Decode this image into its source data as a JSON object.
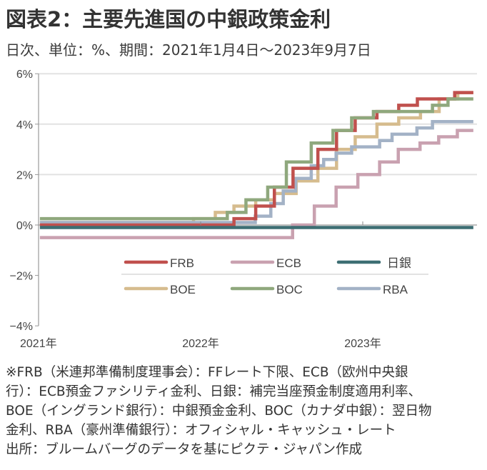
{
  "header": {
    "title": "図表2：主要先進国の中銀政策金利",
    "subtitle": "日次、単位：%、期間：2021年1月4日～2023年9月7日"
  },
  "chart_data": {
    "type": "line",
    "step": true,
    "title": "図表2：主要先進国の中銀政策金利",
    "xlabel": "",
    "ylabel": "%",
    "xlim": [
      "2021-01-04",
      "2023-09-07"
    ],
    "ylim": [
      -4,
      6
    ],
    "yticks": [
      6,
      4,
      2,
      0,
      -2,
      -4
    ],
    "ytick_labels": [
      "6%",
      "4%",
      "2%",
      "0%",
      "−2%",
      "−4%"
    ],
    "xticks": [
      {
        "date": "2021-01-01",
        "label": "2021年"
      },
      {
        "date": "2022-01-01",
        "label": "2022年"
      },
      {
        "date": "2023-01-01",
        "label": "2023年"
      }
    ],
    "grid": true,
    "legend_position": "bottom-center",
    "series": [
      {
        "name": "FRB",
        "color": "#c0504d",
        "steps": [
          [
            "2021-01-04",
            0
          ],
          [
            "2022-03-17",
            0.25
          ],
          [
            "2022-05-05",
            0.75
          ],
          [
            "2022-06-16",
            1.5
          ],
          [
            "2022-07-28",
            2.25
          ],
          [
            "2022-09-22",
            3.0
          ],
          [
            "2022-11-03",
            3.75
          ],
          [
            "2022-12-15",
            4.25
          ],
          [
            "2023-02-02",
            4.5
          ],
          [
            "2023-03-23",
            4.75
          ],
          [
            "2023-05-04",
            5.0
          ],
          [
            "2023-07-27",
            5.25
          ]
        ]
      },
      {
        "name": "ECB",
        "color": "#c9a1b0",
        "steps": [
          [
            "2021-01-04",
            -0.5
          ],
          [
            "2022-07-27",
            0
          ],
          [
            "2022-09-14",
            0.75
          ],
          [
            "2022-11-02",
            1.5
          ],
          [
            "2022-12-21",
            2.0
          ],
          [
            "2023-02-08",
            2.5
          ],
          [
            "2023-03-22",
            3.0
          ],
          [
            "2023-05-10",
            3.25
          ],
          [
            "2023-06-21",
            3.5
          ],
          [
            "2023-08-02",
            3.75
          ]
        ]
      },
      {
        "name": "日銀",
        "color": "#3d6e73",
        "steps": [
          [
            "2021-01-04",
            -0.1
          ]
        ]
      },
      {
        "name": "BOE",
        "color": "#d6bc8e",
        "steps": [
          [
            "2021-01-04",
            0.1
          ],
          [
            "2021-12-16",
            0.25
          ],
          [
            "2022-02-03",
            0.5
          ],
          [
            "2022-03-17",
            0.75
          ],
          [
            "2022-05-05",
            1.0
          ],
          [
            "2022-06-16",
            1.25
          ],
          [
            "2022-08-04",
            1.75
          ],
          [
            "2022-09-22",
            2.25
          ],
          [
            "2022-11-03",
            3.0
          ],
          [
            "2022-12-15",
            3.5
          ],
          [
            "2023-02-02",
            4.0
          ],
          [
            "2023-03-23",
            4.25
          ],
          [
            "2023-05-11",
            4.5
          ],
          [
            "2023-06-22",
            5.0
          ],
          [
            "2023-08-03",
            5.25
          ]
        ]
      },
      {
        "name": "BOC",
        "color": "#8fa87d",
        "steps": [
          [
            "2021-01-04",
            0.25
          ],
          [
            "2022-03-02",
            0.5
          ],
          [
            "2022-04-13",
            1.0
          ],
          [
            "2022-06-01",
            1.5
          ],
          [
            "2022-07-13",
            2.5
          ],
          [
            "2022-09-07",
            3.25
          ],
          [
            "2022-10-26",
            3.75
          ],
          [
            "2022-12-07",
            4.25
          ],
          [
            "2023-01-25",
            4.5
          ],
          [
            "2023-06-07",
            4.75
          ],
          [
            "2023-07-12",
            5.0
          ]
        ]
      },
      {
        "name": "RBA",
        "color": "#a3b2c6",
        "steps": [
          [
            "2021-01-04",
            0.1
          ],
          [
            "2022-05-04",
            0.35
          ],
          [
            "2022-06-08",
            0.85
          ],
          [
            "2022-07-06",
            1.35
          ],
          [
            "2022-08-03",
            1.85
          ],
          [
            "2022-09-07",
            2.35
          ],
          [
            "2022-10-05",
            2.6
          ],
          [
            "2022-11-02",
            2.85
          ],
          [
            "2022-12-07",
            3.1
          ],
          [
            "2023-02-08",
            3.35
          ],
          [
            "2023-03-08",
            3.6
          ],
          [
            "2023-05-03",
            3.85
          ],
          [
            "2023-06-07",
            4.1
          ]
        ]
      }
    ]
  },
  "notes": [
    "※FRB（米連邦準備制度理事会）：FFレート下限、ECB（欧州中央銀",
    "行）：ECB預金ファシリティ金利、日銀：補完当座預金制度適用利率、",
    "BOE（イングランド銀行）：中銀預金金利、BOC（カナダ中銀）：翌日物",
    "金利、RBA（豪州準備銀行）：オフィシャル・キャッシュ・レート",
    "出所：ブルームバーグのデータを基にピクテ・ジャパン作成"
  ]
}
